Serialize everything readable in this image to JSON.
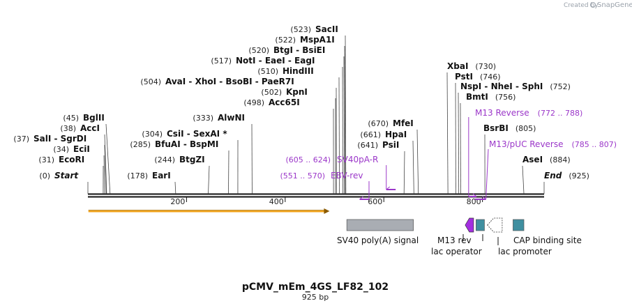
{
  "credit": {
    "created_by": "Created by",
    "brand": "SnapGene"
  },
  "map": {
    "title": "pCMV_mEm_4GS_LF82_102",
    "subtitle": "925 bp",
    "length": 925,
    "start_label": "Start",
    "end_label": "End",
    "start_pos": "(0)",
    "end_pos": "(925)",
    "ticks": [
      "200",
      "400",
      "600",
      "800"
    ],
    "tick_values": [
      200,
      400,
      600,
      800
    ]
  },
  "sites": [
    {
      "name": "Start",
      "pos": 0,
      "pos_text": "(0)"
    },
    {
      "name": "EcoRI",
      "pos": 31,
      "pos_text": "(31)"
    },
    {
      "name": "EciI",
      "pos": 34,
      "pos_text": "(34)"
    },
    {
      "name": "SalI - SgrDI",
      "pos": 37,
      "pos_text": "(37)"
    },
    {
      "name": "AccI",
      "pos": 38,
      "pos_text": "(38)"
    },
    {
      "name": "BglII",
      "pos": 45,
      "pos_text": "(45)"
    },
    {
      "name": "EarI",
      "pos": 178,
      "pos_text": "(178)"
    },
    {
      "name": "BtgZI",
      "pos": 244,
      "pos_text": "(244)"
    },
    {
      "name": "BfuAI - BspMI",
      "pos": 285,
      "pos_text": "(285)"
    },
    {
      "name": "CsiI - SexAI *",
      "pos": 304,
      "pos_text": "(304)"
    },
    {
      "name": "AlwNI",
      "pos": 333,
      "pos_text": "(333)"
    },
    {
      "name": "Acc65I",
      "pos": 498,
      "pos_text": "(498)"
    },
    {
      "name": "KpnI",
      "pos": 502,
      "pos_text": "(502)"
    },
    {
      "name": "AvaI - XhoI - BsoBI - PaeR7I",
      "pos": 504,
      "pos_text": "(504)"
    },
    {
      "name": "HindIII",
      "pos": 510,
      "pos_text": "(510)"
    },
    {
      "name": "NotI - EaeI - EagI",
      "pos": 517,
      "pos_text": "(517)"
    },
    {
      "name": "BtgI - BsiEI",
      "pos": 520,
      "pos_text": "(520)"
    },
    {
      "name": "MspA1I",
      "pos": 522,
      "pos_text": "(522)"
    },
    {
      "name": "SacII",
      "pos": 523,
      "pos_text": "(523)"
    },
    {
      "name": "PsiI",
      "pos": 641,
      "pos_text": "(641)"
    },
    {
      "name": "HpaI",
      "pos": 661,
      "pos_text": "(661)"
    },
    {
      "name": "MfeI",
      "pos": 670,
      "pos_text": "(670)"
    },
    {
      "name": "XbaI",
      "pos": 730,
      "pos_text": "(730)"
    },
    {
      "name": "PstI",
      "pos": 746,
      "pos_text": "(746)"
    },
    {
      "name": "NspI - NheI - SphI",
      "pos": 752,
      "pos_text": "(752)"
    },
    {
      "name": "BmtI",
      "pos": 756,
      "pos_text": "(756)"
    },
    {
      "name": "BsrBI",
      "pos": 805,
      "pos_text": "(805)"
    },
    {
      "name": "AseI",
      "pos": 884,
      "pos_text": "(884)"
    },
    {
      "name": "End",
      "pos": 925,
      "pos_text": "(925)"
    }
  ],
  "primers": [
    {
      "name": "EBV-rev",
      "range": "(551 .. 570)",
      "start": 551,
      "end": 570,
      "dir": "reverse"
    },
    {
      "name": "SV40pA-R",
      "range": "(605 .. 624)",
      "start": 605,
      "end": 624,
      "dir": "reverse"
    },
    {
      "name": "M13 Reverse",
      "range": "(772 .. 788)",
      "start": 772,
      "end": 788,
      "dir": "forward"
    },
    {
      "name": "M13/pUC Reverse",
      "range": "(785 .. 807)",
      "start": 785,
      "end": 807,
      "dir": "forward"
    }
  ],
  "features": [
    {
      "name": "ORF",
      "start": 1,
      "end": 490,
      "color": "#f0a21a",
      "kind": "orf"
    },
    {
      "name": "SV40 poly(A) signal",
      "start": 525,
      "end": 660,
      "color": "#a9adb3",
      "kind": "box"
    },
    {
      "name": "M13 rev",
      "start": 765,
      "end": 782,
      "color": "#a32fe0",
      "kind": "arrow-left"
    },
    {
      "name": "lac operator",
      "start": 787,
      "end": 804,
      "color": "#3f8fa0",
      "kind": "box"
    },
    {
      "name": "lac promoter",
      "start": 810,
      "end": 840,
      "color": "#ffffff",
      "kind": "arrow-left-hollow"
    },
    {
      "name": "CAP binding site",
      "start": 862,
      "end": 884,
      "color": "#3f8fa0",
      "kind": "box"
    }
  ],
  "feature_labels": {
    "sv40": "SV40 poly(A) signal",
    "m13rev": "M13 rev",
    "lacop": "lac operator",
    "lacprom": "lac promoter",
    "cap": "CAP binding site"
  },
  "colors": {
    "primer": "#9b37c9",
    "orf": "#f0a21a",
    "backbone": "#111111"
  }
}
